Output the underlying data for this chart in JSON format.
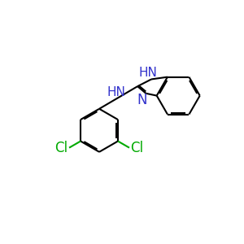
{
  "background_color": "#ffffff",
  "bond_color": "#000000",
  "nitrogen_color": "#3333cc",
  "chlorine_color": "#00aa00",
  "bond_width": 1.5,
  "dbo": 0.06,
  "figsize": [
    3.0,
    3.0
  ],
  "dpi": 100,
  "xlim": [
    0,
    10
  ],
  "ylim": [
    0,
    10
  ],
  "font_size_atom": 11,
  "font_size_small": 9.5
}
